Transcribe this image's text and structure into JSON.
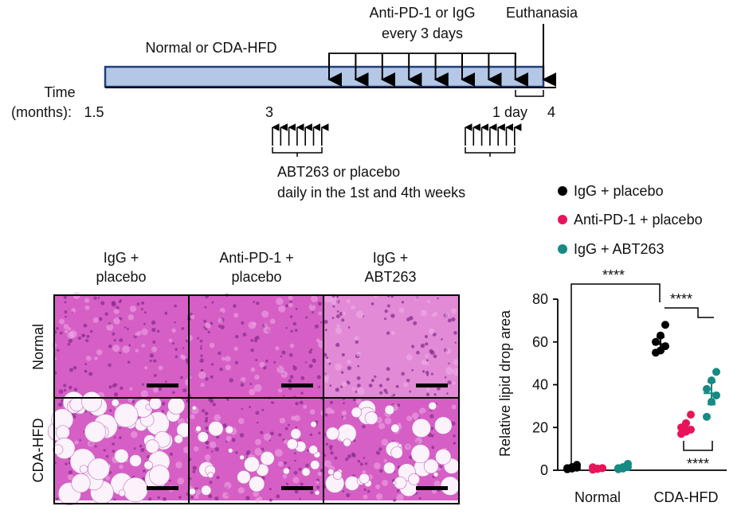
{
  "timeline": {
    "diet_label": "Normal or CDA-HFD",
    "antibody_label_line1": "Anti-PD-1 or IgG",
    "antibody_label_line2": "every 3 days",
    "euthanasia_label": "Euthanasia",
    "time_label_line1": "Time",
    "time_label_line2": "(months):",
    "tick_start": "1.5",
    "tick_mid": "3",
    "tick_end": "4",
    "one_day_label": "1 day",
    "drug_label_line1": "ABT263 or placebo",
    "drug_label_line2": "daily in the 1st and 4th weeks",
    "bar_color": "#b4c7e7",
    "bar_border_color": "#1f3f7a"
  },
  "histology": {
    "col_headers": [
      {
        "line1": "IgG +",
        "line2": "placebo"
      },
      {
        "line1": "Anti-PD-1 +",
        "line2": "placebo"
      },
      {
        "line1": "IgG +",
        "line2": "ABT263"
      }
    ],
    "row_labels": [
      "Normal",
      "CDA-HFD"
    ],
    "stain_color": "#d65fc6",
    "scale_bar_color": "#000000"
  },
  "legend": {
    "items": [
      {
        "label": "IgG + placebo",
        "color": "#000000"
      },
      {
        "label": "Anti-PD-1 + placebo",
        "color": "#e8145a"
      },
      {
        "label": "IgG + ABT263",
        "color": "#168a84"
      }
    ]
  },
  "significance": {
    "top": "****",
    "middle": "****",
    "bottom": "****"
  },
  "chart_data": {
    "type": "scatter",
    "ylabel": "Relative lipid drop area",
    "ylim": [
      0,
      80
    ],
    "yticks": [
      0,
      20,
      40,
      60,
      80
    ],
    "categories": [
      "Normal",
      "CDA-HFD"
    ],
    "series": [
      {
        "name": "IgG + placebo",
        "color": "#000000",
        "points": {
          "Normal": [
            0.5,
            1.5,
            2.5,
            1.0,
            0.8,
            1.2
          ],
          "CDA-HFD": [
            55,
            56,
            58,
            60,
            63,
            68
          ]
        },
        "mean": {
          "Normal": 1.2,
          "CDA-HFD": 59
        }
      },
      {
        "name": "Anti-PD-1 + placebo",
        "color": "#e8145a",
        "points": {
          "Normal": [
            0.3,
            0.8,
            1.0,
            1.4,
            0.6,
            1.0
          ],
          "CDA-HFD": [
            17,
            18,
            19,
            20,
            22,
            26
          ]
        },
        "mean": {
          "Normal": 0.9,
          "CDA-HFD": 20
        }
      },
      {
        "name": "IgG + ABT263",
        "color": "#168a84",
        "points": {
          "Normal": [
            0.5,
            1.5,
            3.0,
            1.0,
            0.8,
            1.5
          ],
          "CDA-HFD": [
            25,
            32,
            35,
            38,
            42,
            46
          ]
        },
        "mean": {
          "Normal": 1.3,
          "CDA-HFD": 36
        }
      }
    ]
  }
}
